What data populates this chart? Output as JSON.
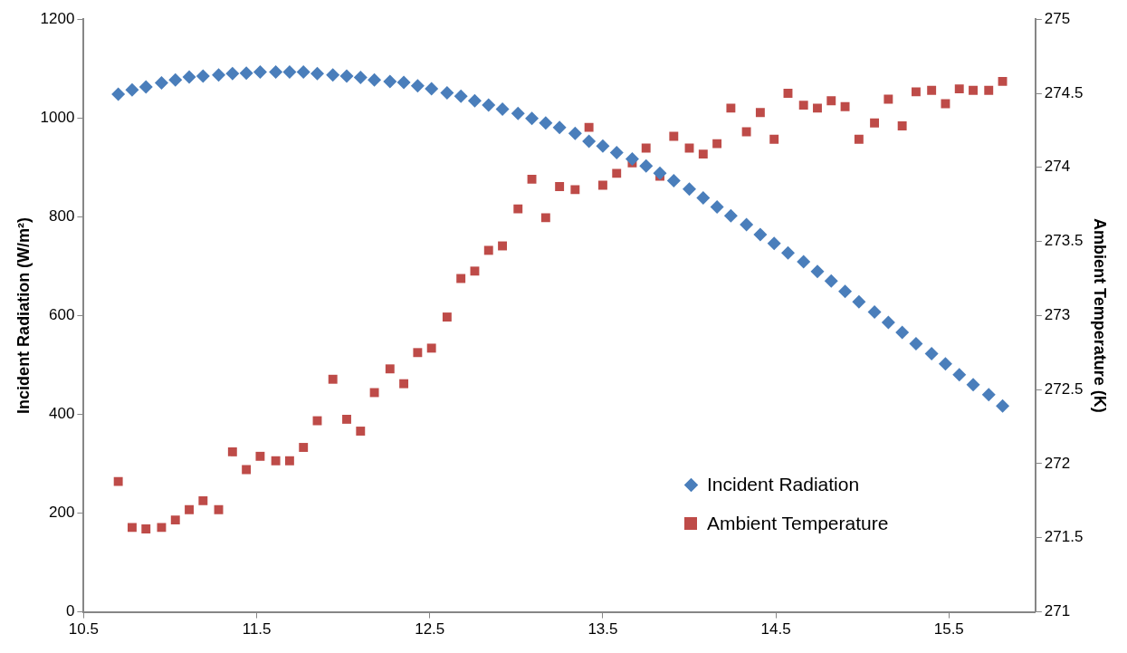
{
  "chart_data": {
    "type": "scatter",
    "ylabel": "Incident Radiation (W/m²)",
    "y2label": "Ambient Temperature (K)",
    "x": [
      10.7,
      10.78,
      10.86,
      10.95,
      11.03,
      11.11,
      11.19,
      11.28,
      11.36,
      11.44,
      11.52,
      11.61,
      11.69,
      11.77,
      11.85,
      11.94,
      12.02,
      12.1,
      12.18,
      12.27,
      12.35,
      12.43,
      12.51,
      12.6,
      12.68,
      12.76,
      12.84,
      12.92,
      13.01,
      13.09,
      13.17,
      13.25,
      13.34,
      13.42,
      13.5,
      13.58,
      13.67,
      13.75,
      13.83,
      13.91,
      14.0,
      14.08,
      14.16,
      14.24,
      14.33,
      14.41,
      14.49,
      14.57,
      14.66,
      14.74,
      14.82,
      14.9,
      14.98,
      15.07,
      15.15,
      15.23,
      15.31,
      15.4,
      15.48,
      15.56,
      15.64,
      15.73,
      15.81
    ],
    "series": [
      {
        "name": "Incident Radiation",
        "color": "#4a7ebb",
        "marker": "diamond",
        "values": [
          1048,
          1057,
          1063,
          1071,
          1077,
          1083,
          1085,
          1087,
          1090,
          1091,
          1093,
          1093,
          1093,
          1093,
          1090,
          1087,
          1085,
          1082,
          1077,
          1074,
          1072,
          1065,
          1059,
          1051,
          1044,
          1035,
          1026,
          1018,
          1009,
          999,
          990,
          981,
          969,
          953,
          943,
          930,
          917,
          903,
          888,
          873,
          856,
          838,
          820,
          802,
          784,
          764,
          746,
          727,
          709,
          689,
          670,
          649,
          628,
          607,
          586,
          566,
          543,
          523,
          502,
          480,
          460,
          440,
          417
        ]
      },
      {
        "name": "Ambient Temperature",
        "color": "#be4b48",
        "marker": "square",
        "axis": "y2",
        "values": [
          271.88,
          271.57,
          271.56,
          271.57,
          271.62,
          271.69,
          271.75,
          271.69,
          272.08,
          271.96,
          272.05,
          272.02,
          272.02,
          272.11,
          272.29,
          272.57,
          272.3,
          272.22,
          272.48,
          272.64,
          272.54,
          272.75,
          272.78,
          272.99,
          273.25,
          273.3,
          273.44,
          273.47,
          273.72,
          273.92,
          273.66,
          273.87,
          273.85,
          274.27,
          273.88,
          273.96,
          274.03,
          274.13,
          273.94,
          274.21,
          274.13,
          274.09,
          274.16,
          274.4,
          274.24,
          274.37,
          274.19,
          274.5,
          274.42,
          274.4,
          274.45,
          274.41,
          274.19,
          274.3,
          274.46,
          274.28,
          274.51,
          274.52,
          274.43,
          274.53,
          274.52,
          274.52,
          274.58
        ]
      }
    ],
    "xlim": [
      10.5,
      16
    ],
    "xticks": [
      10.5,
      11.5,
      12.5,
      13.5,
      14.5,
      15.5
    ],
    "ylim": [
      0,
      1200
    ],
    "yticks": [
      0,
      200,
      400,
      600,
      800,
      1000,
      1200
    ],
    "y2lim": [
      271,
      275
    ],
    "y2ticks": [
      271,
      271.5,
      272,
      272.5,
      273,
      273.5,
      274,
      274.5,
      275
    ],
    "grid": false,
    "legend": "bottom right"
  }
}
